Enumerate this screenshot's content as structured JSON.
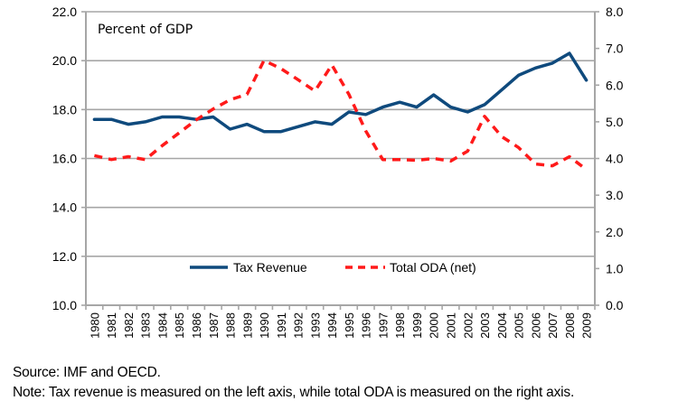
{
  "chart_data": {
    "type": "line",
    "title": "",
    "annotation": "Percent of GDP",
    "x": [
      "1980",
      "1981",
      "1982",
      "1983",
      "1984",
      "1985",
      "1986",
      "1987",
      "1988",
      "1989",
      "1990",
      "1991",
      "1992",
      "1993",
      "1994",
      "1995",
      "1996",
      "1997",
      "1998",
      "1999",
      "2000",
      "2001",
      "2002",
      "2003",
      "2004",
      "2005",
      "2006",
      "2007",
      "2008",
      "2009"
    ],
    "series": [
      {
        "name": "Tax Revenue",
        "axis": "left",
        "color": "#0f4a7d",
        "style": "solid",
        "values": [
          17.6,
          17.6,
          17.4,
          17.5,
          17.7,
          17.7,
          17.6,
          17.7,
          17.2,
          17.4,
          17.1,
          17.1,
          17.3,
          17.5,
          17.4,
          17.9,
          17.8,
          18.1,
          18.3,
          18.1,
          18.6,
          18.1,
          17.9,
          18.2,
          18.8,
          19.4,
          19.7,
          19.9,
          20.3,
          19.2
        ]
      },
      {
        "name": "Total ODA (net)",
        "axis": "right",
        "color": "#ff1a1a",
        "style": "dashed",
        "values": [
          4.08,
          3.97,
          4.05,
          3.97,
          4.35,
          4.7,
          5.05,
          5.35,
          5.6,
          5.75,
          6.67,
          6.45,
          6.15,
          5.84,
          6.55,
          5.75,
          4.75,
          3.97,
          3.97,
          3.95,
          4.0,
          3.93,
          4.2,
          5.15,
          4.6,
          4.3,
          3.85,
          3.8,
          4.05,
          3.7
        ]
      }
    ],
    "left_axis": {
      "ylim": [
        10,
        22
      ],
      "ticks": [
        "10.0",
        "12.0",
        "14.0",
        "16.0",
        "18.0",
        "20.0",
        "22.0"
      ]
    },
    "right_axis": {
      "ylim": [
        0,
        8
      ],
      "ticks": [
        "0.0",
        "1.0",
        "2.0",
        "3.0",
        "4.0",
        "5.0",
        "6.0",
        "7.0",
        "8.0"
      ]
    },
    "xlabel": "",
    "ylabel": "",
    "grid": true,
    "legend": {
      "placement": "bottom-center",
      "entries": [
        "Tax Revenue",
        "Total ODA (net)"
      ]
    }
  },
  "footer": {
    "source": "Source: IMF and OECD.",
    "note": "Note: Tax revenue is measured on the left axis, while total ODA is measured on the right axis."
  }
}
